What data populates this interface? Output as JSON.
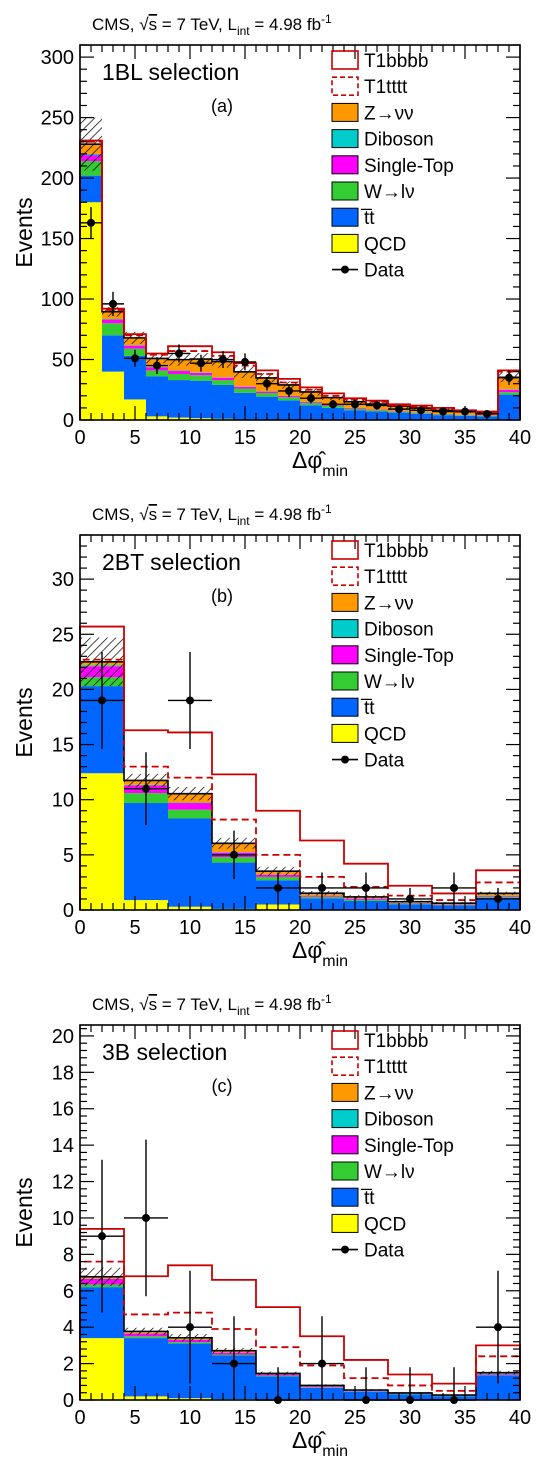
{
  "header": {
    "prefix": "CMS, ",
    "sqrt_s": "s",
    "energy": " = 7 TeV, L",
    "lumi_sub": "int",
    "lumi_value": " = 4.98 fb",
    "lumi_sup": "-1"
  },
  "legend_order": [
    "T1bbbb",
    "T1tttt",
    "Z→νν",
    "Diboson",
    "Single-Top",
    "W→lν",
    "t̅t",
    "QCD",
    "Data"
  ],
  "colors": {
    "qcd": "#ffff00",
    "ttbar": "#0066ff",
    "wlnu": "#33cc33",
    "singletop": "#ff00ff",
    "diboson": "#00cccc",
    "zinv": "#ff9900",
    "t1bbbb": "#cc0000",
    "t1tttt": "#cc0000",
    "data": "#000000"
  },
  "chart_data": [
    {
      "type": "bar",
      "stacked": true,
      "selection": "1BL selection",
      "panel_label": "(a)",
      "xlabel_main": "Δφ̂",
      "xlabel_sub": "min",
      "ylabel": "Events",
      "xlim": [
        0,
        40
      ],
      "ylim": [
        0,
        310
      ],
      "xticks": [
        "0",
        "5",
        "10",
        "15",
        "20",
        "25",
        "30",
        "35",
        "40"
      ],
      "yticks": [
        "0",
        "50",
        "100",
        "150",
        "200",
        "250",
        "300"
      ],
      "xtick_values": [
        0,
        5,
        10,
        15,
        20,
        25,
        30,
        35,
        40
      ],
      "ytick_values": [
        0,
        50,
        100,
        150,
        200,
        250,
        300
      ],
      "bin_edges": [
        0,
        2,
        4,
        6,
        8,
        10,
        12,
        14,
        16,
        18,
        20,
        22,
        24,
        26,
        28,
        30,
        32,
        34,
        36,
        38,
        40
      ],
      "series": [
        {
          "name": "QCD",
          "key": "qcd",
          "values": [
            180,
            40,
            17,
            3,
            2,
            1.5,
            1,
            0.5,
            0.3,
            0.3,
            0.2,
            0.1,
            0.1,
            0.1,
            0.1,
            0.1,
            0,
            0,
            0,
            0
          ]
        },
        {
          "name": "t̅t",
          "key": "ttbar",
          "values": [
            22,
            30,
            36,
            33,
            31,
            31,
            28,
            22,
            19,
            16,
            12,
            10,
            8,
            7,
            6,
            5,
            4,
            3.5,
            3,
            21
          ]
        },
        {
          "name": "W→lν",
          "key": "wlnu",
          "values": [
            12,
            10,
            6,
            5,
            5,
            4.5,
            4,
            3.5,
            3,
            2.5,
            2,
            1.5,
            1.2,
            1,
            0.8,
            0.8,
            0.6,
            0.5,
            0.4,
            2
          ]
        },
        {
          "name": "Single-Top",
          "key": "singletop",
          "values": [
            5,
            3,
            2.5,
            2.5,
            2.5,
            2,
            2,
            1.5,
            1.2,
            1,
            0.8,
            0.7,
            0.6,
            0.5,
            0.4,
            0.4,
            0.3,
            0.3,
            0.3,
            2
          ]
        },
        {
          "name": "Diboson",
          "key": "diboson",
          "values": [
            1,
            0.5,
            0.4,
            0.4,
            0.4,
            0.4,
            0.3,
            0.3,
            0.3,
            0.2,
            0.2,
            0.2,
            0.2,
            0.1,
            0.1,
            0.1,
            0.1,
            0.1,
            0.1,
            0.3
          ]
        },
        {
          "name": "Z→νν",
          "key": "zinv",
          "values": [
            8,
            6,
            6,
            7,
            9,
            11,
            13,
            12,
            11,
            9,
            8,
            6,
            5,
            4.5,
            4,
            3.5,
            3,
            2.5,
            2,
            10
          ]
        }
      ],
      "uncertainty_band": [
        22,
        4,
        5,
        4,
        5,
        5,
        5,
        5,
        4,
        3,
        3,
        2,
        2,
        2,
        2,
        1.5,
        1.5,
        1,
        1,
        4
      ],
      "signal_T1bbbb": [
        231,
        92,
        71,
        55,
        61,
        61,
        56,
        47,
        41,
        34,
        27,
        22,
        18,
        16,
        13,
        12,
        10,
        8,
        7,
        41
      ],
      "signal_T1tttt": [
        230,
        91,
        70,
        54,
        57,
        57,
        53,
        45,
        38,
        31,
        25,
        20,
        17,
        15,
        12,
        11,
        9,
        7.5,
        6.5,
        40
      ],
      "data": {
        "x": [
          1,
          3,
          5,
          7,
          9,
          11,
          13,
          15,
          17,
          19,
          21,
          23,
          25,
          27,
          29,
          31,
          33,
          35,
          37,
          39
        ],
        "y": [
          163,
          96,
          51,
          45,
          55,
          47,
          50,
          48,
          30,
          24,
          18,
          13,
          13,
          12,
          9,
          8,
          7,
          7,
          5,
          35
        ],
        "err": [
          13,
          10,
          7,
          7,
          7.5,
          7,
          7,
          7,
          5.5,
          5,
          4.3,
          3.6,
          3.6,
          3.5,
          3,
          2.9,
          2.7,
          2.7,
          2.3,
          6
        ]
      }
    },
    {
      "type": "bar",
      "stacked": true,
      "selection": "2BT selection",
      "panel_label": "(b)",
      "xlabel_main": "Δφ̂",
      "xlabel_sub": "min",
      "ylabel": "Events",
      "xlim": [
        0,
        40
      ],
      "ylim": [
        0,
        34
      ],
      "xticks": [
        "0",
        "5",
        "10",
        "15",
        "20",
        "25",
        "30",
        "35",
        "40"
      ],
      "yticks": [
        "0",
        "5",
        "10",
        "15",
        "20",
        "25",
        "30"
      ],
      "xtick_values": [
        0,
        5,
        10,
        15,
        20,
        25,
        30,
        35,
        40
      ],
      "ytick_values": [
        0,
        5,
        10,
        15,
        20,
        25,
        30
      ],
      "bin_edges": [
        0,
        4,
        8,
        12,
        16,
        20,
        24,
        28,
        32,
        36,
        40
      ],
      "series": [
        {
          "name": "QCD",
          "key": "qcd",
          "values": [
            12.4,
            0.9,
            0.3,
            0.1,
            0.5,
            0.05,
            0.02,
            0.02,
            0.01,
            0.01
          ]
        },
        {
          "name": "t̅t",
          "key": "ttbar",
          "values": [
            7.9,
            8.8,
            8.0,
            4.2,
            2.2,
            1.0,
            0.8,
            0.5,
            0.4,
            1.1
          ]
        },
        {
          "name": "W→lν",
          "key": "wlnu",
          "values": [
            0.8,
            0.9,
            0.8,
            0.5,
            0.3,
            0.15,
            0.1,
            0.08,
            0.05,
            0.1
          ]
        },
        {
          "name": "Single-Top",
          "key": "singletop",
          "values": [
            1.0,
            0.7,
            0.6,
            0.4,
            0.2,
            0.1,
            0.1,
            0.05,
            0.05,
            0.08
          ]
        },
        {
          "name": "Diboson",
          "key": "diboson",
          "values": [
            0.1,
            0.05,
            0.05,
            0.05,
            0.02,
            0.02,
            0.02,
            0.01,
            0.01,
            0.02
          ]
        },
        {
          "name": "Z→νν",
          "key": "zinv",
          "values": [
            0.3,
            0.4,
            0.8,
            0.8,
            0.3,
            0.2,
            0.15,
            0.1,
            0.1,
            0.2
          ]
        }
      ],
      "uncertainty_band": [
        2.2,
        0.6,
        0.6,
        0.5,
        0.4,
        0.2,
        0.15,
        0.1,
        0.1,
        0.15
      ],
      "signal_T1bbbb": [
        25.7,
        16.3,
        16.1,
        12.3,
        9.0,
        6.3,
        4.2,
        2.2,
        1.5,
        3.6
      ],
      "signal_T1tttt": [
        22.7,
        13.0,
        12.0,
        8.2,
        5.0,
        3.0,
        2.1,
        1.3,
        0.9,
        2.5
      ],
      "data": {
        "x": [
          2,
          6,
          10,
          14,
          18,
          22,
          26,
          30,
          34,
          38
        ],
        "y": [
          19,
          11,
          19,
          5,
          2,
          2,
          2,
          1,
          2,
          1
        ],
        "err": [
          4.4,
          3.3,
          4.4,
          2.2,
          1.4,
          1.4,
          1.4,
          1.0,
          1.4,
          1.0
        ]
      }
    },
    {
      "type": "bar",
      "stacked": true,
      "selection": "3B selection",
      "panel_label": "(c)",
      "xlabel_main": "Δφ̂",
      "xlabel_sub": "min",
      "ylabel": "Events",
      "xlim": [
        0,
        40
      ],
      "ylim": [
        0,
        20.6
      ],
      "xticks": [
        "0",
        "5",
        "10",
        "15",
        "20",
        "25",
        "30",
        "35",
        "40"
      ],
      "yticks": [
        "0",
        "2",
        "4",
        "6",
        "8",
        "10",
        "12",
        "14",
        "16",
        "18",
        "20"
      ],
      "xtick_values": [
        0,
        5,
        10,
        15,
        20,
        25,
        30,
        35,
        40
      ],
      "ytick_values": [
        0,
        2,
        4,
        6,
        8,
        10,
        12,
        14,
        16,
        18,
        20
      ],
      "bin_edges": [
        0,
        4,
        8,
        12,
        16,
        20,
        24,
        28,
        32,
        36,
        40
      ],
      "series": [
        {
          "name": "QCD",
          "key": "qcd",
          "values": [
            3.4,
            0.2,
            0.1,
            0.05,
            0.05,
            0.02,
            0.01,
            0.01,
            0.01,
            0.01
          ]
        },
        {
          "name": "t̅t",
          "key": "ttbar",
          "values": [
            2.8,
            3.2,
            3.0,
            2.4,
            1.25,
            0.65,
            0.45,
            0.3,
            0.2,
            1.35
          ]
        },
        {
          "name": "W→lν",
          "key": "wlnu",
          "values": [
            0.15,
            0.1,
            0.08,
            0.05,
            0.04,
            0.03,
            0.02,
            0.02,
            0.01,
            0.03
          ]
        },
        {
          "name": "Single-Top",
          "key": "singletop",
          "values": [
            0.3,
            0.15,
            0.12,
            0.1,
            0.06,
            0.04,
            0.03,
            0.02,
            0.02,
            0.05
          ]
        },
        {
          "name": "Diboson",
          "key": "diboson",
          "values": [
            0.02,
            0.02,
            0.02,
            0.01,
            0.01,
            0.01,
            0.01,
            0.01,
            0.01,
            0.01
          ]
        },
        {
          "name": "Z→νν",
          "key": "zinv",
          "values": [
            0.1,
            0.1,
            0.1,
            0.1,
            0.05,
            0.05,
            0.03,
            0.03,
            0.02,
            0.05
          ]
        }
      ],
      "uncertainty_band": [
        0.5,
        0.2,
        0.2,
        0.15,
        0.1,
        0.06,
        0.05,
        0.04,
        0.03,
        0.1
      ],
      "signal_T1bbbb": [
        9.4,
        6.8,
        7.4,
        6.6,
        5.1,
        3.5,
        2.2,
        1.4,
        0.9,
        3.0
      ],
      "signal_T1tttt": [
        7.6,
        4.7,
        4.8,
        3.9,
        2.9,
        1.9,
        1.2,
        0.8,
        0.5,
        2.4
      ],
      "data": {
        "x": [
          2,
          6,
          10,
          14,
          18,
          22,
          26,
          30,
          34,
          38
        ],
        "y": [
          9,
          10,
          4,
          2,
          0,
          2,
          0,
          0,
          0,
          4
        ],
        "err": [
          4.2,
          4.3,
          3.1,
          2.6,
          1.8,
          2.6,
          1.8,
          1.8,
          1.8,
          3.1
        ]
      }
    }
  ]
}
